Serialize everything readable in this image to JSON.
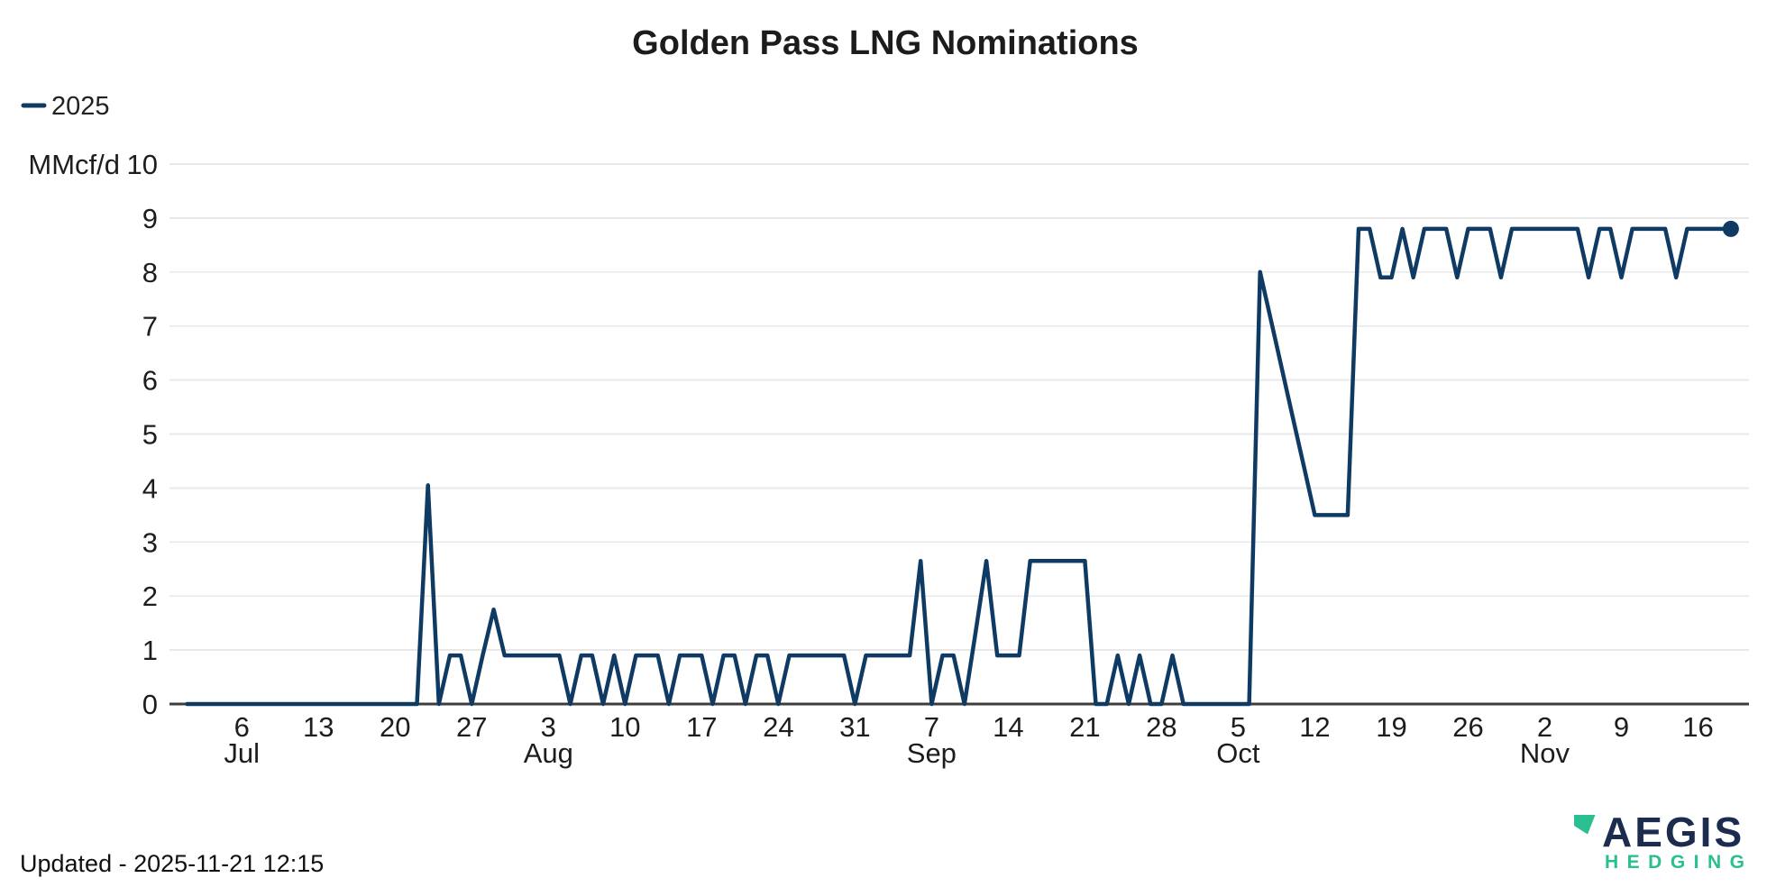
{
  "header": {
    "title": "Golden Pass LNG Nominations"
  },
  "legend": {
    "series_label": "2025"
  },
  "y_axis": {
    "unit_label": "MMcf/d"
  },
  "footer": {
    "updated": "Updated - 2025-11-21 12:15"
  },
  "logo": {
    "brand": "AEGIS",
    "subbrand": "HEDGING"
  },
  "colors": {
    "line": "#0f3a63",
    "axis": "#3d3d3d",
    "grid": "#e8e8e8",
    "text": "#1d1d1d",
    "logo_navy": "#1b2c4e",
    "logo_green": "#2abf90",
    "background": "#ffffff"
  },
  "chart_data": {
    "type": "line",
    "title": "Golden Pass LNG Nominations",
    "xlabel": "",
    "ylabel": "MMcf/d",
    "ylim": [
      0,
      10
    ],
    "yticks": [
      0,
      1,
      2,
      3,
      4,
      5,
      6,
      7,
      8,
      9,
      10
    ],
    "grid": "horizontal",
    "legend_position": "top-left",
    "x_range": [
      "2025-07-01",
      "2025-11-19"
    ],
    "x_tick_labels": [
      {
        "date": "2025-07-06",
        "label": "6"
      },
      {
        "date": "2025-07-13",
        "label": "13"
      },
      {
        "date": "2025-07-20",
        "label": "20"
      },
      {
        "date": "2025-07-27",
        "label": "27"
      },
      {
        "date": "2025-08-03",
        "label": "3"
      },
      {
        "date": "2025-08-10",
        "label": "10"
      },
      {
        "date": "2025-08-17",
        "label": "17"
      },
      {
        "date": "2025-08-24",
        "label": "24"
      },
      {
        "date": "2025-08-31",
        "label": "31"
      },
      {
        "date": "2025-09-07",
        "label": "7"
      },
      {
        "date": "2025-09-14",
        "label": "14"
      },
      {
        "date": "2025-09-21",
        "label": "21"
      },
      {
        "date": "2025-09-28",
        "label": "28"
      },
      {
        "date": "2025-10-05",
        "label": "5"
      },
      {
        "date": "2025-10-12",
        "label": "12"
      },
      {
        "date": "2025-10-19",
        "label": "19"
      },
      {
        "date": "2025-10-26",
        "label": "26"
      },
      {
        "date": "2025-11-02",
        "label": "2"
      },
      {
        "date": "2025-11-09",
        "label": "9"
      },
      {
        "date": "2025-11-16",
        "label": "16"
      }
    ],
    "month_labels": [
      {
        "date": "2025-07-06",
        "label": "Jul"
      },
      {
        "date": "2025-08-03",
        "label": "Aug"
      },
      {
        "date": "2025-09-07",
        "label": "Sep"
      },
      {
        "date": "2025-10-05",
        "label": "Oct"
      },
      {
        "date": "2025-11-02",
        "label": "Nov"
      }
    ],
    "series": [
      {
        "name": "2025",
        "unit": "MMcf/d",
        "marker_on_last_point": true,
        "points": [
          [
            "2025-07-01",
            0
          ],
          [
            "2025-07-02",
            0
          ],
          [
            "2025-07-03",
            0
          ],
          [
            "2025-07-04",
            0
          ],
          [
            "2025-07-05",
            0
          ],
          [
            "2025-07-06",
            0
          ],
          [
            "2025-07-07",
            0
          ],
          [
            "2025-07-08",
            0
          ],
          [
            "2025-07-09",
            0
          ],
          [
            "2025-07-10",
            0
          ],
          [
            "2025-07-11",
            0
          ],
          [
            "2025-07-12",
            0
          ],
          [
            "2025-07-13",
            0
          ],
          [
            "2025-07-14",
            0
          ],
          [
            "2025-07-15",
            0
          ],
          [
            "2025-07-16",
            0
          ],
          [
            "2025-07-17",
            0
          ],
          [
            "2025-07-18",
            0
          ],
          [
            "2025-07-19",
            0
          ],
          [
            "2025-07-20",
            0
          ],
          [
            "2025-07-21",
            0
          ],
          [
            "2025-07-22",
            0
          ],
          [
            "2025-07-23",
            4.05
          ],
          [
            "2025-07-24",
            0
          ],
          [
            "2025-07-25",
            0.9
          ],
          [
            "2025-07-26",
            0.9
          ],
          [
            "2025-07-27",
            0
          ],
          [
            "2025-07-28",
            0.9
          ],
          [
            "2025-07-29",
            1.75
          ],
          [
            "2025-07-30",
            0.9
          ],
          [
            "2025-07-31",
            0.9
          ],
          [
            "2025-08-01",
            0.9
          ],
          [
            "2025-08-02",
            0.9
          ],
          [
            "2025-08-03",
            0.9
          ],
          [
            "2025-08-04",
            0.9
          ],
          [
            "2025-08-05",
            0
          ],
          [
            "2025-08-06",
            0.9
          ],
          [
            "2025-08-07",
            0.9
          ],
          [
            "2025-08-08",
            0
          ],
          [
            "2025-08-09",
            0.9
          ],
          [
            "2025-08-10",
            0
          ],
          [
            "2025-08-11",
            0.9
          ],
          [
            "2025-08-12",
            0.9
          ],
          [
            "2025-08-13",
            0.9
          ],
          [
            "2025-08-14",
            0
          ],
          [
            "2025-08-15",
            0.9
          ],
          [
            "2025-08-16",
            0.9
          ],
          [
            "2025-08-17",
            0.9
          ],
          [
            "2025-08-18",
            0
          ],
          [
            "2025-08-19",
            0.9
          ],
          [
            "2025-08-20",
            0.9
          ],
          [
            "2025-08-21",
            0
          ],
          [
            "2025-08-22",
            0.9
          ],
          [
            "2025-08-23",
            0.9
          ],
          [
            "2025-08-24",
            0
          ],
          [
            "2025-08-25",
            0.9
          ],
          [
            "2025-08-26",
            0.9
          ],
          [
            "2025-08-27",
            0.9
          ],
          [
            "2025-08-28",
            0.9
          ],
          [
            "2025-08-29",
            0.9
          ],
          [
            "2025-08-30",
            0.9
          ],
          [
            "2025-08-31",
            0
          ],
          [
            "2025-09-01",
            0.9
          ],
          [
            "2025-09-02",
            0.9
          ],
          [
            "2025-09-03",
            0.9
          ],
          [
            "2025-09-04",
            0.9
          ],
          [
            "2025-09-05",
            0.9
          ],
          [
            "2025-09-06",
            2.65
          ],
          [
            "2025-09-07",
            0
          ],
          [
            "2025-09-08",
            0.9
          ],
          [
            "2025-09-09",
            0.9
          ],
          [
            "2025-09-10",
            0
          ],
          [
            "2025-09-11",
            1.3
          ],
          [
            "2025-09-12",
            2.65
          ],
          [
            "2025-09-13",
            0.9
          ],
          [
            "2025-09-14",
            0.9
          ],
          [
            "2025-09-15",
            0.9
          ],
          [
            "2025-09-16",
            2.65
          ],
          [
            "2025-09-17",
            2.65
          ],
          [
            "2025-09-18",
            2.65
          ],
          [
            "2025-09-19",
            2.65
          ],
          [
            "2025-09-20",
            2.65
          ],
          [
            "2025-09-21",
            2.65
          ],
          [
            "2025-09-22",
            0
          ],
          [
            "2025-09-23",
            0
          ],
          [
            "2025-09-24",
            0.9
          ],
          [
            "2025-09-25",
            0
          ],
          [
            "2025-09-26",
            0.9
          ],
          [
            "2025-09-27",
            0
          ],
          [
            "2025-09-28",
            0
          ],
          [
            "2025-09-29",
            0.9
          ],
          [
            "2025-09-30",
            0
          ],
          [
            "2025-10-01",
            0
          ],
          [
            "2025-10-02",
            0
          ],
          [
            "2025-10-03",
            0
          ],
          [
            "2025-10-04",
            0
          ],
          [
            "2025-10-05",
            0
          ],
          [
            "2025-10-06",
            0
          ],
          [
            "2025-10-07",
            8
          ],
          [
            "2025-10-08",
            7.1
          ],
          [
            "2025-10-09",
            6.2
          ],
          [
            "2025-10-10",
            5.3
          ],
          [
            "2025-10-11",
            4.4
          ],
          [
            "2025-10-12",
            3.5
          ],
          [
            "2025-10-13",
            3.5
          ],
          [
            "2025-10-14",
            3.5
          ],
          [
            "2025-10-15",
            3.5
          ],
          [
            "2025-10-16",
            8.8
          ],
          [
            "2025-10-17",
            8.8
          ],
          [
            "2025-10-18",
            7.9
          ],
          [
            "2025-10-19",
            7.9
          ],
          [
            "2025-10-20",
            8.8
          ],
          [
            "2025-10-21",
            7.9
          ],
          [
            "2025-10-22",
            8.8
          ],
          [
            "2025-10-23",
            8.8
          ],
          [
            "2025-10-24",
            8.8
          ],
          [
            "2025-10-25",
            7.9
          ],
          [
            "2025-10-26",
            8.8
          ],
          [
            "2025-10-27",
            8.8
          ],
          [
            "2025-10-28",
            8.8
          ],
          [
            "2025-10-29",
            7.9
          ],
          [
            "2025-10-30",
            8.8
          ],
          [
            "2025-10-31",
            8.8
          ],
          [
            "2025-11-01",
            8.8
          ],
          [
            "2025-11-02",
            8.8
          ],
          [
            "2025-11-03",
            8.8
          ],
          [
            "2025-11-04",
            8.8
          ],
          [
            "2025-11-05",
            8.8
          ],
          [
            "2025-11-06",
            7.9
          ],
          [
            "2025-11-07",
            8.8
          ],
          [
            "2025-11-08",
            8.8
          ],
          [
            "2025-11-09",
            7.9
          ],
          [
            "2025-11-10",
            8.8
          ],
          [
            "2025-11-11",
            8.8
          ],
          [
            "2025-11-12",
            8.8
          ],
          [
            "2025-11-13",
            8.8
          ],
          [
            "2025-11-14",
            7.9
          ],
          [
            "2025-11-15",
            8.8
          ],
          [
            "2025-11-16",
            8.8
          ],
          [
            "2025-11-17",
            8.8
          ],
          [
            "2025-11-18",
            8.8
          ],
          [
            "2025-11-19",
            8.8
          ]
        ]
      }
    ]
  }
}
